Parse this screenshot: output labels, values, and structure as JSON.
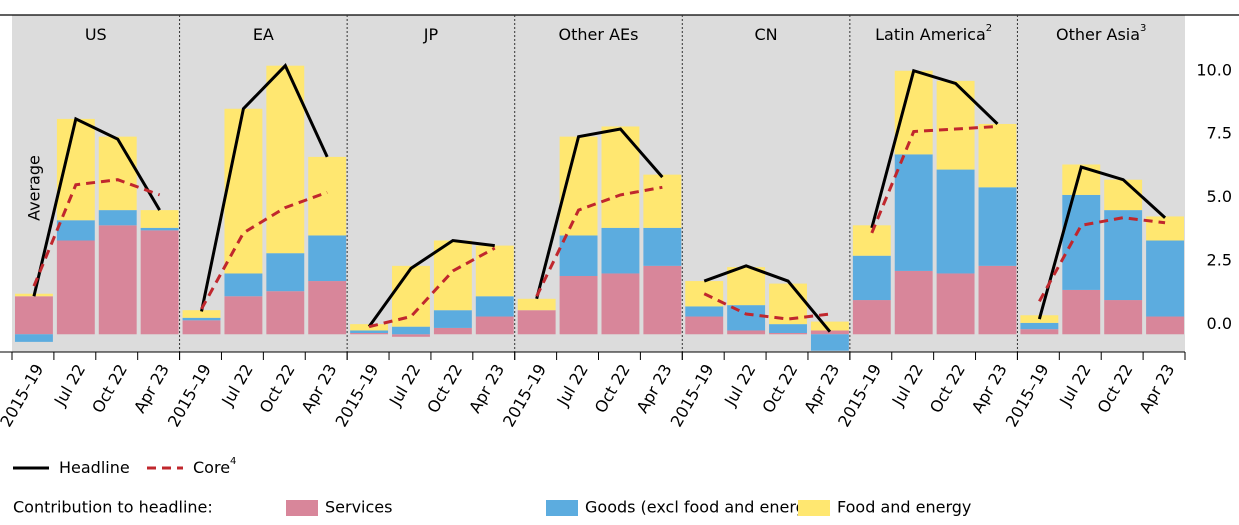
{
  "chart_data": {
    "type": "bar",
    "stacked": true,
    "annotation": "Average",
    "categories": [
      "2015–19",
      "Jul 22",
      "Oct 22",
      "Apr 23"
    ],
    "panels": [
      {
        "title": "US"
      },
      {
        "title": "EA"
      },
      {
        "title": "JP"
      },
      {
        "title": "Other AEs"
      },
      {
        "title": "CN"
      },
      {
        "title": "Latin America",
        "note": "2"
      },
      {
        "title": "Other Asia",
        "note": "3"
      }
    ],
    "ylim": [
      -0.7,
      12.6
    ],
    "yticks": [
      {
        "value": 0,
        "label": "0.0"
      },
      {
        "value": 2.5,
        "label": "2.5"
      },
      {
        "value": 5,
        "label": "5.0"
      },
      {
        "value": 7.5,
        "label": "7.5"
      },
      {
        "value": 10,
        "label": "10.0"
      }
    ],
    "legend_title": "Contribution to headline:",
    "series": [
      {
        "name": "Services",
        "color": "#d8869a",
        "kind": "bar",
        "values": [
          [
            1.5,
            3.7,
            4.3,
            4.1
          ],
          [
            0.55,
            1.5,
            1.7,
            2.1
          ],
          [
            0.05,
            -0.1,
            0.25,
            0.7
          ],
          [
            0.95,
            2.3,
            2.4,
            2.7
          ],
          [
            0.7,
            0.15,
            0.05,
            0.15
          ],
          [
            1.35,
            2.5,
            2.4,
            2.7
          ],
          [
            0.2,
            1.75,
            1.35,
            0.7
          ]
        ]
      },
      {
        "name": "Goods (excl food and energy)",
        "color": "#5cacdf",
        "kind": "bar",
        "values": [
          [
            -0.3,
            0.8,
            0.6,
            0.1
          ],
          [
            0.1,
            0.9,
            1.5,
            1.8
          ],
          [
            0.1,
            0.3,
            0.7,
            0.8
          ],
          [
            0,
            1.6,
            1.8,
            1.5
          ],
          [
            0.4,
            1.0,
            0.35,
            -0.65
          ],
          [
            1.75,
            4.6,
            4.1,
            3.1
          ],
          [
            0.25,
            3.75,
            3.55,
            3.0
          ]
        ]
      },
      {
        "name": "Food and energy",
        "color": "#ffe770",
        "kind": "bar",
        "values": [
          [
            0.1,
            4.0,
            2.9,
            0.7
          ],
          [
            0.3,
            6.5,
            7.4,
            3.1
          ],
          [
            0.25,
            2.4,
            2.75,
            2.0
          ],
          [
            0.45,
            3.9,
            4.0,
            2.1
          ],
          [
            1.0,
            1.5,
            1.6,
            0.35
          ],
          [
            1.2,
            3.3,
            3.5,
            2.5
          ],
          [
            0.3,
            1.2,
            1.2,
            0.95
          ]
        ]
      },
      {
        "name": "Headline",
        "color": "#000000",
        "kind": "line",
        "values": [
          [
            1.5,
            8.5,
            7.7,
            4.9
          ],
          [
            0.9,
            8.9,
            10.6,
            7.0
          ],
          [
            0.3,
            2.6,
            3.7,
            3.5
          ],
          [
            1.4,
            7.8,
            8.1,
            6.2
          ],
          [
            2.1,
            2.7,
            2.1,
            0.1
          ],
          [
            4.2,
            10.4,
            9.9,
            8.3
          ],
          [
            0.6,
            6.6,
            6.1,
            4.6
          ]
        ]
      },
      {
        "name": "Core",
        "note": "4",
        "color": "#c0272d",
        "kind": "line",
        "dashed": true,
        "values": [
          [
            1.9,
            5.9,
            6.1,
            5.5
          ],
          [
            1.0,
            4.0,
            5.0,
            5.6
          ],
          [
            0.3,
            0.7,
            2.5,
            3.4
          ],
          [
            1.5,
            4.9,
            5.5,
            5.8
          ],
          [
            1.6,
            0.8,
            0.6,
            0.8
          ],
          [
            4.0,
            8.0,
            8.1,
            8.2
          ],
          [
            1.3,
            4.3,
            4.6,
            4.4
          ]
        ]
      }
    ]
  }
}
